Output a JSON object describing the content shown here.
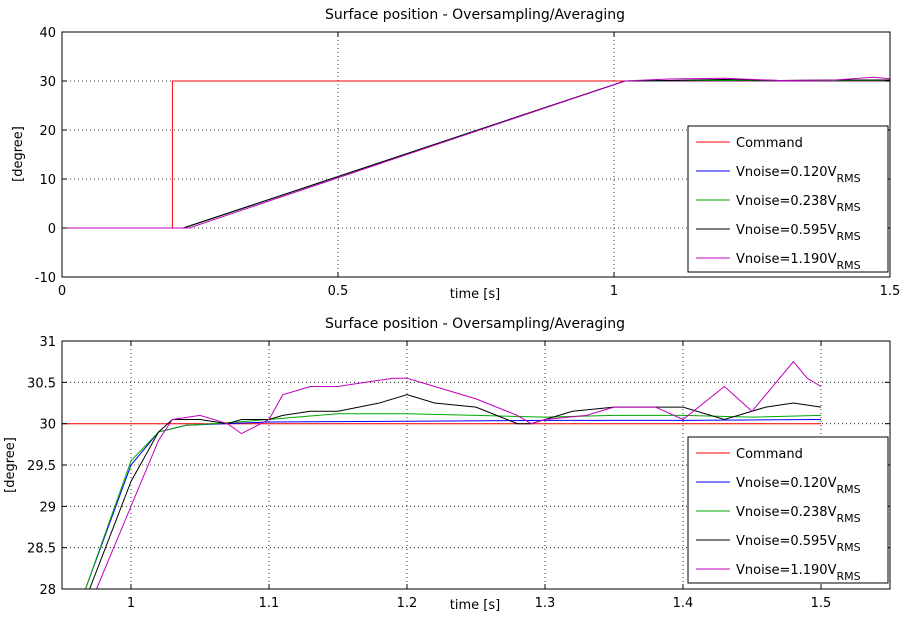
{
  "colors": {
    "command": "#ff0000",
    "v0120": "#0000ff",
    "v0238": "#00aa00",
    "v0595": "#000000",
    "v1190": "#bf00bf"
  },
  "chart_data": [
    {
      "type": "line",
      "title": "Surface position - Oversampling/Averaging",
      "xlabel": "time [s]",
      "ylabel": "[degree]",
      "xlim": [
        0,
        1.5
      ],
      "ylim": [
        -10,
        40
      ],
      "xticks": [
        0,
        0.5,
        1,
        1.5
      ],
      "xtick_labels": [
        "0",
        "0.5",
        "1",
        "1.5"
      ],
      "yticks": [
        -10,
        0,
        10,
        20,
        30,
        40
      ],
      "ytick_labels": [
        "-10",
        "0",
        "10",
        "20",
        "30",
        "40"
      ],
      "grid": true,
      "legend_position": "right",
      "series": [
        {
          "name": "Command",
          "sub": "",
          "color_key": "command",
          "x": [
            0,
            0.2,
            0.2,
            1.5
          ],
          "y": [
            0,
            0,
            30,
            30
          ]
        },
        {
          "name": "Vnoise=0.120V",
          "sub": "RMS",
          "color_key": "v0120",
          "x": [
            0,
            0.22,
            1.02,
            1.1,
            1.2,
            1.3,
            1.4,
            1.5
          ],
          "y": [
            0,
            0,
            30,
            30.05,
            30.05,
            30.05,
            30.05,
            30.05
          ]
        },
        {
          "name": "Vnoise=0.238V",
          "sub": "RMS",
          "color_key": "v0238",
          "x": [
            0,
            0.22,
            1.02,
            1.1,
            1.2,
            1.3,
            1.4,
            1.5
          ],
          "y": [
            0,
            0,
            30,
            30.1,
            30.1,
            30.1,
            30.1,
            30.1
          ]
        },
        {
          "name": "Vnoise=0.595V",
          "sub": "RMS",
          "color_key": "v0595",
          "x": [
            0,
            0.22,
            1.02,
            1.1,
            1.2,
            1.3,
            1.4,
            1.45,
            1.5
          ],
          "y": [
            0,
            0,
            30,
            30.1,
            30.3,
            30.1,
            30.2,
            30.2,
            30.2
          ]
        },
        {
          "name": "Vnoise=1.190V",
          "sub": "RMS",
          "color_key": "v1190",
          "x": [
            0,
            0.23,
            1.02,
            1.1,
            1.2,
            1.3,
            1.4,
            1.47,
            1.5
          ],
          "y": [
            0,
            0,
            30,
            30.4,
            30.55,
            30.1,
            30.2,
            30.75,
            30.45
          ]
        }
      ]
    },
    {
      "type": "line",
      "title": "Surface position - Oversampling/Averaging",
      "xlabel": "time [s]",
      "ylabel": "[degree]",
      "xlim": [
        0.95,
        1.55
      ],
      "ylim": [
        28,
        31
      ],
      "xticks": [
        1,
        1.1,
        1.2,
        1.3,
        1.4,
        1.5
      ],
      "xtick_labels": [
        "1",
        "1.1",
        "1.2",
        "1.3",
        "1.4",
        "1.5"
      ],
      "yticks": [
        28,
        28.5,
        29,
        29.5,
        30,
        30.5,
        31
      ],
      "ytick_labels": [
        "28",
        "28.5",
        "29",
        "29.5",
        "30",
        "30.5",
        "31"
      ],
      "grid": true,
      "legend_position": "right",
      "series": [
        {
          "name": "Command",
          "sub": "",
          "color_key": "command",
          "x": [
            0.95,
            1.5
          ],
          "y": [
            30,
            30
          ]
        },
        {
          "name": "Vnoise=0.120V",
          "sub": "RMS",
          "color_key": "v0120",
          "x": [
            0.967,
            1.0,
            1.02,
            1.04,
            1.1,
            1.2,
            1.3,
            1.4,
            1.5
          ],
          "y": [
            28.0,
            29.5,
            29.9,
            29.98,
            30.02,
            30.03,
            30.04,
            30.04,
            30.05
          ]
        },
        {
          "name": "Vnoise=0.238V",
          "sub": "RMS",
          "color_key": "v0238",
          "x": [
            0.967,
            1.0,
            1.02,
            1.04,
            1.06,
            1.1,
            1.12,
            1.15,
            1.2,
            1.25,
            1.3,
            1.35,
            1.4,
            1.45,
            1.5
          ],
          "y": [
            28.0,
            29.55,
            29.9,
            29.98,
            30.0,
            30.05,
            30.08,
            30.12,
            30.12,
            30.1,
            30.08,
            30.1,
            30.1,
            30.08,
            30.1
          ]
        },
        {
          "name": "Vnoise=0.595V",
          "sub": "RMS",
          "color_key": "v0595",
          "x": [
            0.97,
            1.0,
            1.02,
            1.03,
            1.05,
            1.07,
            1.08,
            1.1,
            1.11,
            1.13,
            1.15,
            1.18,
            1.2,
            1.22,
            1.25,
            1.28,
            1.29,
            1.3,
            1.32,
            1.35,
            1.38,
            1.4,
            1.43,
            1.46,
            1.48,
            1.5
          ],
          "y": [
            28.0,
            29.3,
            29.9,
            30.05,
            30.05,
            30.0,
            30.05,
            30.05,
            30.1,
            30.15,
            30.15,
            30.25,
            30.35,
            30.25,
            30.2,
            30.0,
            30.0,
            30.05,
            30.15,
            30.2,
            30.2,
            30.2,
            30.05,
            30.2,
            30.25,
            30.2
          ]
        },
        {
          "name": "Vnoise=1.190V",
          "sub": "RMS",
          "color_key": "v1190",
          "x": [
            0.975,
            1.0,
            1.02,
            1.03,
            1.05,
            1.07,
            1.08,
            1.1,
            1.11,
            1.12,
            1.13,
            1.15,
            1.17,
            1.19,
            1.2,
            1.22,
            1.25,
            1.28,
            1.29,
            1.3,
            1.33,
            1.35,
            1.38,
            1.4,
            1.43,
            1.45,
            1.47,
            1.48,
            1.49,
            1.5
          ],
          "y": [
            28.0,
            29.0,
            29.8,
            30.05,
            30.1,
            30.0,
            29.88,
            30.05,
            30.35,
            30.4,
            30.45,
            30.45,
            30.5,
            30.55,
            30.55,
            30.45,
            30.3,
            30.1,
            30.0,
            30.05,
            30.1,
            30.2,
            30.2,
            30.05,
            30.45,
            30.15,
            30.55,
            30.75,
            30.55,
            30.45
          ]
        }
      ]
    }
  ]
}
